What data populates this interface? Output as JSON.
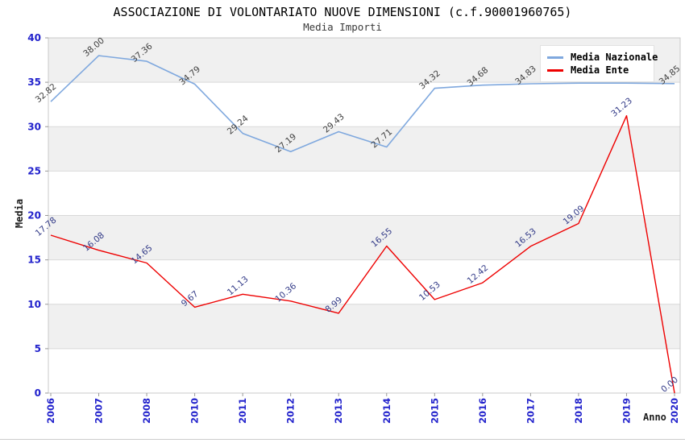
{
  "chart_data": {
    "type": "line",
    "title": "ASSOCIAZIONE DI VOLONTARIATO NUOVE DIMENSIONI (c.f.90001960765)",
    "subtitle": "Media Importi",
    "xlabel": "Anno",
    "ylabel": "Media",
    "x": [
      "2006",
      "2007",
      "2008",
      "2010",
      "2011",
      "2012",
      "2013",
      "2014",
      "2015",
      "2016",
      "2017",
      "2018",
      "2019",
      "2020"
    ],
    "ylim": [
      0,
      40
    ],
    "ytick_step": 5,
    "yticks": [
      0,
      5,
      10,
      15,
      20,
      25,
      30,
      35,
      40
    ],
    "grid": true,
    "legend_position": "top-right",
    "series": [
      {
        "name": "Media Nazionale",
        "color": "#7fa8de",
        "label_color": "#3f3f3f",
        "values": [
          32.82,
          38.0,
          37.36,
          34.79,
          29.24,
          27.19,
          29.43,
          27.71,
          34.32,
          34.68,
          34.83,
          34.9,
          34.9,
          34.85
        ],
        "labels_hidden_by_legend": [
          11,
          12
        ]
      },
      {
        "name": "Media Ente",
        "color": "#ee0000",
        "label_color": "#333b88",
        "values": [
          17.78,
          16.08,
          14.65,
          9.67,
          11.13,
          10.36,
          8.99,
          16.55,
          10.53,
          12.42,
          16.53,
          19.09,
          31.23,
          0.0
        ],
        "labels_hidden_by_legend": []
      }
    ],
    "styles": {
      "band_fill": "#f0f0f0",
      "band_alt_fill": "#ffffff",
      "gridline": "#d9d9d9",
      "plot_border": "#c9c9c9",
      "tick_color": "#999999",
      "axis_tick_label_color": "#2222cc"
    }
  }
}
